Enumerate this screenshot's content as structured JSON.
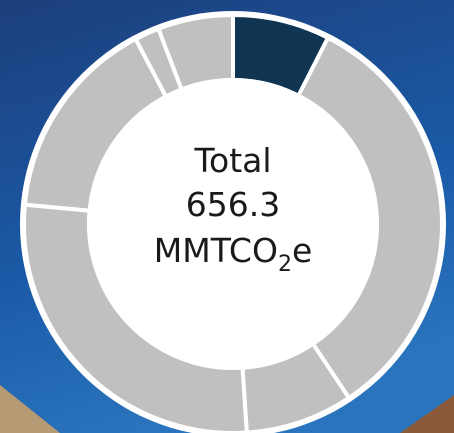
{
  "chart_data": {
    "type": "donut",
    "center_text": {
      "line1": "Total",
      "line2": "656.3",
      "unit": "MMTCO",
      "unit_subscript": "2",
      "unit_suffix": "e"
    },
    "values": [
      7.5,
      33.1,
      8.3,
      27.5,
      15.8,
      1.9,
      5.8
    ],
    "colors": [
      "#0f3552",
      "#c0c0c0",
      "#c0c0c0",
      "#c0c0c0",
      "#c0c0c0",
      "#c0c0c0",
      "#c0c0c0"
    ],
    "start_angle": 0,
    "direction": "clockwise"
  }
}
